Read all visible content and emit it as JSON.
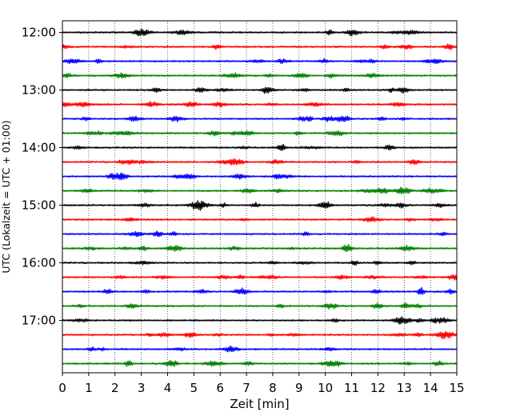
{
  "chart_data": {
    "type": "line",
    "title": "",
    "xlabel": "Zeit  [min]",
    "ylabel": "UTC (Lokalzeit = UTC + 01:00)",
    "xlim": [
      0,
      15
    ],
    "x_ticks": [
      "0",
      "1",
      "2",
      "3",
      "4",
      "5",
      "6",
      "7",
      "8",
      "9",
      "10",
      "11",
      "12",
      "13",
      "14",
      "15"
    ],
    "y_ticks": [
      "12:00",
      "13:00",
      "14:00",
      "15:00",
      "16:00",
      "17:00"
    ],
    "trace_interval_min": 15,
    "grid": "vertical dotted at each minute",
    "traces": [
      {
        "start": "12:00",
        "color": "#000000"
      },
      {
        "start": "12:15",
        "color": "#ff0000"
      },
      {
        "start": "12:30",
        "color": "#0000ff"
      },
      {
        "start": "12:45",
        "color": "#008000"
      },
      {
        "start": "13:00",
        "color": "#000000"
      },
      {
        "start": "13:15",
        "color": "#ff0000"
      },
      {
        "start": "13:30",
        "color": "#0000ff"
      },
      {
        "start": "13:45",
        "color": "#008000"
      },
      {
        "start": "14:00",
        "color": "#000000"
      },
      {
        "start": "14:15",
        "color": "#ff0000"
      },
      {
        "start": "14:30",
        "color": "#0000ff"
      },
      {
        "start": "14:45",
        "color": "#008000"
      },
      {
        "start": "15:00",
        "color": "#000000"
      },
      {
        "start": "15:15",
        "color": "#ff0000"
      },
      {
        "start": "15:30",
        "color": "#0000ff"
      },
      {
        "start": "15:45",
        "color": "#008000"
      },
      {
        "start": "16:00",
        "color": "#000000"
      },
      {
        "start": "16:15",
        "color": "#ff0000"
      },
      {
        "start": "16:30",
        "color": "#0000ff"
      },
      {
        "start": "16:45",
        "color": "#008000"
      },
      {
        "start": "17:00",
        "color": "#000000"
      },
      {
        "start": "17:15",
        "color": "#ff0000"
      },
      {
        "start": "17:30",
        "color": "#0000ff"
      },
      {
        "start": "17:45",
        "color": "#008000"
      }
    ]
  }
}
